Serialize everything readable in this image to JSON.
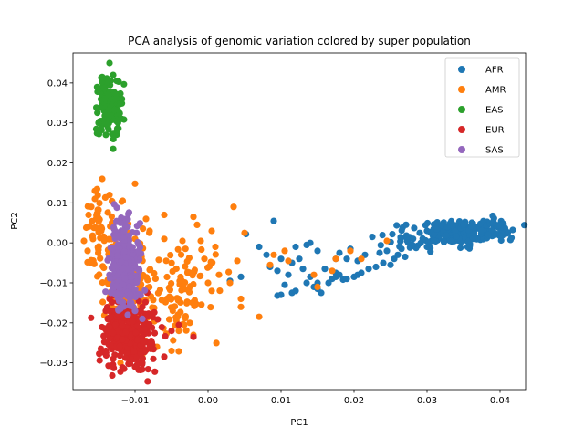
{
  "chart_data": {
    "type": "scatter",
    "title": "PCA analysis of genomic variation colored by super population",
    "xlabel": "PC1",
    "ylabel": "PC2",
    "xlim": [
      -0.0185,
      0.0435
    ],
    "ylim": [
      -0.0367,
      0.0475
    ],
    "xticks": [
      -0.01,
      0.0,
      0.01,
      0.02,
      0.03,
      0.04
    ],
    "xtick_labels": [
      "−0.01",
      "0.00",
      "0.01",
      "0.02",
      "0.03",
      "0.04"
    ],
    "yticks": [
      -0.03,
      -0.02,
      -0.01,
      0.0,
      0.01,
      0.02,
      0.03,
      0.04
    ],
    "ytick_labels": [
      "−0.03",
      "−0.02",
      "−0.01",
      "0.00",
      "0.01",
      "0.02",
      "0.03",
      "0.04"
    ],
    "grid": false,
    "legend_position": "top-right",
    "series": [
      {
        "name": "AFR",
        "color": "#1f77b4",
        "clusters": [
          {
            "cx": 0.0345,
            "cy": 0.0025,
            "sx": 0.003,
            "sy": 0.0015,
            "n": 190
          },
          {
            "cx": 0.0395,
            "cy": 0.004,
            "sx": 0.0008,
            "sy": 0.0012,
            "n": 30
          },
          {
            "cx": 0.028,
            "cy": 0.0005,
            "sx": 0.002,
            "sy": 0.0014,
            "n": 30
          }
        ],
        "points": [
          [
            0.009,
            0.0055
          ],
          [
            0.0052,
            0.0022
          ],
          [
            0.007,
            -0.001
          ],
          [
            0.0045,
            -0.0085
          ],
          [
            0.003,
            -0.0095
          ],
          [
            0.0105,
            -0.0105
          ],
          [
            0.0095,
            -0.0132
          ],
          [
            0.01,
            -0.013
          ],
          [
            0.0115,
            -0.0125
          ],
          [
            0.012,
            -0.012
          ],
          [
            0.0135,
            -0.01
          ],
          [
            0.0145,
            -0.011
          ],
          [
            0.015,
            -0.01
          ],
          [
            0.0155,
            -0.0125
          ],
          [
            0.015,
            -0.0115
          ],
          [
            0.0165,
            -0.01
          ],
          [
            0.017,
            -0.009
          ],
          [
            0.0175,
            -0.0085
          ],
          [
            0.0185,
            -0.0092
          ],
          [
            0.019,
            -0.009
          ],
          [
            0.02,
            -0.0085
          ],
          [
            0.0205,
            -0.008
          ],
          [
            0.021,
            -0.0075
          ],
          [
            0.022,
            -0.0065
          ],
          [
            0.023,
            -0.006
          ],
          [
            0.024,
            -0.005
          ],
          [
            0.025,
            -0.0055
          ],
          [
            0.0255,
            -0.004
          ],
          [
            0.026,
            -0.003
          ],
          [
            0.027,
            -0.0035
          ],
          [
            0.0115,
            -0.005
          ],
          [
            0.0125,
            -0.004
          ],
          [
            0.012,
            -0.001
          ],
          [
            0.008,
            -0.003
          ],
          [
            0.0085,
            -0.006
          ],
          [
            0.0095,
            -0.007
          ],
          [
            0.01,
            -0.004
          ],
          [
            0.014,
            0.0
          ],
          [
            0.0135,
            -0.0005
          ],
          [
            0.015,
            -0.002
          ],
          [
            0.0175,
            -0.004
          ],
          [
            0.018,
            -0.0025
          ],
          [
            0.019,
            -0.004
          ],
          [
            0.0195,
            -0.0015
          ],
          [
            0.0205,
            -0.0045
          ],
          [
            0.0215,
            -0.003
          ],
          [
            0.0225,
            0.0015
          ],
          [
            0.0235,
            -0.0025
          ],
          [
            0.0245,
            -0.002
          ],
          [
            0.0175,
            -0.0075
          ],
          [
            0.018,
            -0.008
          ],
          [
            0.014,
            -0.0085
          ],
          [
            0.013,
            -0.0065
          ],
          [
            0.016,
            -0.0065
          ],
          [
            0.011,
            -0.008
          ],
          [
            0.0265,
            -0.0015
          ],
          [
            0.028,
            -0.0005
          ],
          [
            0.029,
            0.0025
          ],
          [
            0.03,
            0.003
          ],
          [
            0.03,
            -0.001
          ]
        ]
      },
      {
        "name": "AMR",
        "color": "#ff7f0e",
        "clusters": [
          {
            "cx": -0.012,
            "cy": -0.008,
            "sx": 0.0018,
            "sy": 0.007,
            "n": 130
          },
          {
            "cx": -0.015,
            "cy": 0.004,
            "sx": 0.0008,
            "sy": 0.005,
            "n": 40
          },
          {
            "cx": -0.006,
            "cy": -0.015,
            "sx": 0.003,
            "sy": 0.005,
            "n": 80
          },
          {
            "cx": -0.003,
            "cy": -0.008,
            "sx": 0.0025,
            "sy": 0.0045,
            "n": 40
          }
        ],
        "points": [
          [
            -0.01,
            0.0148
          ],
          [
            -0.0145,
            0.016
          ],
          [
            -0.0155,
            0.013
          ],
          [
            -0.0135,
            0.012
          ],
          [
            -0.0085,
            0.006
          ],
          [
            -0.008,
            0.003
          ],
          [
            -0.006,
            0.001
          ],
          [
            -0.006,
            0.007
          ],
          [
            -0.0035,
            0.0005
          ],
          [
            -0.002,
            0.0065
          ],
          [
            -0.0015,
            0.0045
          ],
          [
            -0.001,
            0.0005
          ],
          [
            0.0005,
            0.003
          ],
          [
            0.001,
            -0.001
          ],
          [
            -0.0005,
            -0.004
          ],
          [
            0.0035,
            0.009
          ],
          [
            0.005,
            0.0025
          ],
          [
            0.004,
            -0.0045
          ],
          [
            0.003,
            -0.01
          ],
          [
            0.0045,
            -0.014
          ],
          [
            0.0045,
            -0.016
          ],
          [
            0.007,
            -0.0185
          ],
          [
            0.0085,
            -0.0055
          ],
          [
            0.009,
            -0.003
          ],
          [
            0.0245,
            0.0005
          ],
          [
            0.021,
            -0.004
          ],
          [
            0.0195,
            -0.002
          ],
          [
            0.0175,
            -0.004
          ],
          [
            0.017,
            -0.007
          ],
          [
            0.015,
            -0.011
          ],
          [
            0.0145,
            -0.008
          ],
          [
            0.011,
            -0.0045
          ],
          [
            0.0105,
            -0.002
          ],
          [
            0.0015,
            -0.008
          ],
          [
            0.0005,
            -0.012
          ],
          [
            0.0,
            -0.01
          ],
          [
            -0.005,
            -0.027
          ],
          [
            -0.009,
            -0.028
          ],
          [
            -0.012,
            -0.03
          ],
          [
            -0.0085,
            -0.0245
          ],
          [
            -0.007,
            -0.026
          ],
          [
            -0.002,
            -0.023
          ],
          [
            -0.0025,
            -0.02
          ],
          [
            -0.004,
            -0.022
          ],
          [
            -0.0165,
            -0.002
          ],
          [
            -0.016,
            -0.005
          ],
          [
            -0.017,
            0.0005
          ],
          [
            -0.016,
            0.009
          ],
          [
            -0.0155,
            0.011
          ],
          [
            -0.01,
            0.001
          ]
        ]
      },
      {
        "name": "EAS",
        "color": "#2ca02c",
        "clusters": [
          {
            "cx": -0.0135,
            "cy": 0.034,
            "sx": 0.0008,
            "sy": 0.0028,
            "n": 210
          }
        ],
        "points": [
          [
            -0.0135,
            0.045
          ],
          [
            -0.013,
            0.042
          ],
          [
            -0.0145,
            0.0415
          ],
          [
            -0.0125,
            0.0405
          ],
          [
            -0.013,
            0.0235
          ],
          [
            -0.014,
            0.027
          ],
          [
            -0.0125,
            0.028
          ],
          [
            -0.015,
            0.03
          ],
          [
            -0.0118,
            0.031
          ],
          [
            -0.0152,
            0.039
          ]
        ]
      },
      {
        "name": "EUR",
        "color": "#d62728",
        "clusters": [
          {
            "cx": -0.011,
            "cy": -0.023,
            "sx": 0.0016,
            "sy": 0.004,
            "n": 420
          }
        ],
        "points": [
          [
            -0.012,
            -0.0322
          ],
          [
            -0.0115,
            -0.0315
          ],
          [
            -0.01,
            -0.031
          ],
          [
            -0.009,
            -0.03
          ],
          [
            -0.013,
            -0.029
          ],
          [
            -0.014,
            -0.027
          ],
          [
            -0.0075,
            -0.029
          ],
          [
            -0.008,
            -0.026
          ],
          [
            -0.0135,
            -0.014
          ],
          [
            -0.009,
            -0.016
          ],
          [
            -0.0085,
            -0.018
          ],
          [
            -0.014,
            -0.017
          ],
          [
            -0.005,
            -0.022
          ],
          [
            -0.002,
            -0.0235
          ],
          [
            -0.004,
            -0.0205
          ]
        ]
      },
      {
        "name": "SAS",
        "color": "#9467bd",
        "clusters": [
          {
            "cx": -0.0113,
            "cy": -0.006,
            "sx": 0.001,
            "sy": 0.0048,
            "n": 420
          }
        ],
        "points": [
          [
            -0.0125,
            0.0088
          ],
          [
            -0.012,
            0.005
          ],
          [
            -0.011,
            0.004
          ],
          [
            -0.0115,
            0.003
          ],
          [
            -0.0095,
            -0.002
          ],
          [
            -0.01,
            -0.017
          ],
          [
            -0.011,
            -0.018
          ],
          [
            -0.012,
            -0.0165
          ],
          [
            -0.009,
            -0.019
          ],
          [
            -0.0105,
            -0.015
          ]
        ]
      }
    ]
  }
}
